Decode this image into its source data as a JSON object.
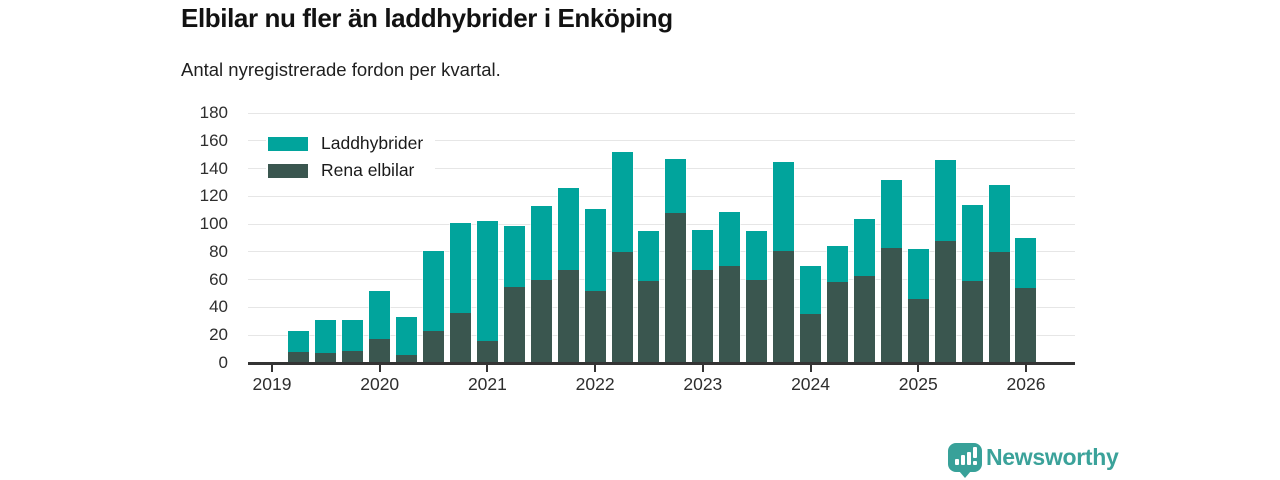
{
  "chart_data": {
    "type": "bar",
    "stacked": true,
    "title": "Elbilar nu fler än laddhybrider i Enköping",
    "subtitle": "Antal nyregistrerade fordon per kvartal.",
    "categories": [
      "Q2 2019",
      "Q3 2019",
      "Q4 2019",
      "Q1 2020",
      "Q2 2020",
      "Q3 2020",
      "Q4 2020",
      "Q1 2021",
      "Q2 2021",
      "Q3 2021",
      "Q4 2021",
      "Q1 2022",
      "Q2 2022",
      "Q3 2022",
      "Q4 2022",
      "Q1 2023",
      "Q2 2023",
      "Q3 2023",
      "Q4 2023",
      "Q1 2024",
      "Q2 2024",
      "Q3 2024",
      "Q4 2024",
      "Q1 2025",
      "Q2 2025",
      "Q3 2025",
      "Q4 2025",
      "Q1 2026"
    ],
    "series": [
      {
        "name": "Laddhybrider",
        "color": "#01a49c",
        "stack_position": "top",
        "values": [
          15,
          24,
          22,
          35,
          27,
          58,
          65,
          86,
          44,
          53,
          59,
          59,
          72,
          36,
          39,
          29,
          39,
          35,
          64,
          35,
          26,
          41,
          49,
          36,
          58,
          55,
          48,
          36
        ]
      },
      {
        "name": "Rena elbilar",
        "color": "#3a564f",
        "stack_position": "bottom",
        "values": [
          8,
          7,
          9,
          17,
          6,
          23,
          36,
          16,
          55,
          60,
          67,
          52,
          80,
          59,
          108,
          67,
          70,
          60,
          81,
          35,
          58,
          63,
          83,
          46,
          88,
          59,
          80,
          54
        ]
      }
    ],
    "x_tick_labels": [
      "2019",
      "2020",
      "2021",
      "2022",
      "2023",
      "2024",
      "2025",
      "2026"
    ],
    "ylim": [
      0,
      180
    ],
    "yticks": [
      0,
      20,
      40,
      60,
      80,
      100,
      120,
      140,
      160,
      180
    ],
    "grid": "horizontal",
    "legend_position": "top-left"
  },
  "footer": {
    "logo_text": "Newsworthy",
    "logo_color": "#3ba29a"
  }
}
